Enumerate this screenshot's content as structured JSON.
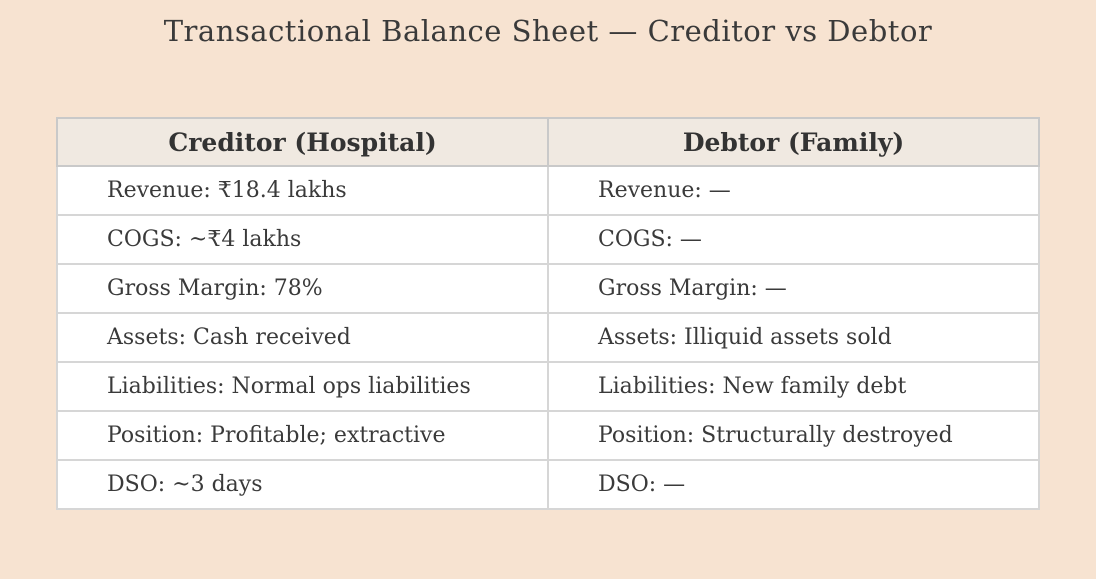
{
  "page": {
    "background_color": "#f7e3d1",
    "text_color": "#3a3a3a",
    "header_bg_color": "#f0e9e1",
    "cell_bg_color": "#ffffff",
    "border_color": "#c9c9c9"
  },
  "chart_data": {
    "type": "table",
    "title": "Transactional Balance Sheet — Creditor vs Debtor",
    "columns": [
      "Creditor (Hospital)",
      "Debtor (Family)"
    ],
    "rows": [
      [
        "Revenue: ₹18.4 lakhs",
        "Revenue: —"
      ],
      [
        "COGS: ~₹4 lakhs",
        "COGS: —"
      ],
      [
        "Gross Margin: 78%",
        "Gross Margin: —"
      ],
      [
        "Assets: Cash received",
        "Assets: Illiquid assets sold"
      ],
      [
        "Liabilities: Normal ops liabilities",
        "Liabilities: New family debt"
      ],
      [
        "Position: Profitable; extractive",
        "Position: Structurally destroyed"
      ],
      [
        "DSO: ~3 days",
        "DSO: —"
      ]
    ],
    "layout": {
      "legend": "none",
      "grid": "table-borders",
      "header_row": true
    }
  }
}
